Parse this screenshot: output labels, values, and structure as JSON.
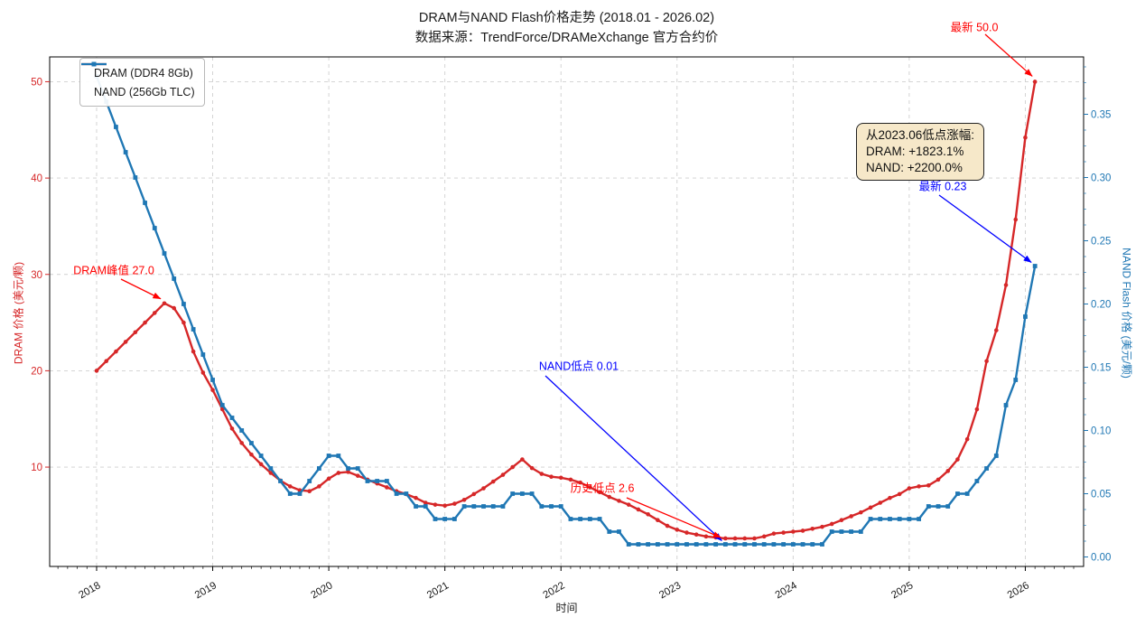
{
  "title": "DRAM与NAND Flash价格走势 (2018.01 - 2026.02)",
  "subtitle": "数据来源：TrendForce/DRAMeXchange 官方合约价",
  "chart_data": {
    "type": "line",
    "x_start": "2018.01",
    "x_end": "2026.02",
    "frequency": "monthly",
    "xlabel": "时间",
    "x_tick_labels": [
      "2018",
      "2019",
      "2020",
      "2021",
      "2022",
      "2023",
      "2024",
      "2025",
      "2026"
    ],
    "grid": "dashed",
    "legend_position": "upper-left",
    "left_axis": {
      "label": "DRAM 价格 (美元/颗)",
      "color": "#d62728",
      "ticks": [
        10,
        20,
        30,
        40,
        50
      ],
      "range": [
        -0.3,
        52.6
      ]
    },
    "right_axis": {
      "label": "NAND Flash 价格 (美元/颗)",
      "color": "#1f77b4",
      "ticks": [
        0.0,
        0.05,
        0.1,
        0.15,
        0.2,
        0.25,
        0.3,
        0.35
      ],
      "range": [
        -0.008,
        0.395
      ]
    },
    "series": [
      {
        "name": "DRAM (DDR4 8Gb)",
        "color": "#d62728",
        "axis": "left",
        "marker": "circle",
        "values": [
          20.0,
          21.0,
          22.0,
          23.0,
          24.0,
          25.0,
          26.0,
          27.0,
          26.5,
          25.0,
          22.0,
          19.8,
          18.0,
          16.0,
          14.0,
          12.5,
          11.3,
          10.3,
          9.4,
          8.6,
          8.0,
          7.6,
          7.5,
          8.0,
          8.8,
          9.4,
          9.5,
          9.1,
          8.7,
          8.3,
          7.9,
          7.5,
          7.2,
          6.8,
          6.3,
          6.1,
          6.0,
          6.2,
          6.6,
          7.2,
          7.8,
          8.5,
          9.2,
          10.0,
          10.8,
          9.9,
          9.3,
          9.0,
          8.9,
          8.7,
          8.4,
          7.9,
          7.4,
          6.9,
          6.5,
          6.1,
          5.6,
          5.1,
          4.5,
          3.9,
          3.5,
          3.2,
          3.0,
          2.8,
          2.7,
          2.6,
          2.6,
          2.6,
          2.6,
          2.8,
          3.1,
          3.2,
          3.3,
          3.4,
          3.6,
          3.8,
          4.1,
          4.5,
          4.9,
          5.3,
          5.8,
          6.3,
          6.8,
          7.2,
          7.8,
          8.0,
          8.1,
          8.7,
          9.6,
          10.8,
          12.9,
          16.0,
          21.0,
          24.2,
          28.9,
          35.7,
          44.2,
          50.0
        ]
      },
      {
        "name": "NAND (256Gb TLC)",
        "color": "#1f77b4",
        "axis": "right",
        "marker": "square",
        "values": [
          0.38,
          0.36,
          0.34,
          0.32,
          0.3,
          0.28,
          0.26,
          0.24,
          0.22,
          0.2,
          0.18,
          0.16,
          0.14,
          0.12,
          0.11,
          0.1,
          0.09,
          0.08,
          0.07,
          0.06,
          0.05,
          0.05,
          0.06,
          0.07,
          0.08,
          0.08,
          0.07,
          0.07,
          0.06,
          0.06,
          0.06,
          0.05,
          0.05,
          0.04,
          0.04,
          0.03,
          0.03,
          0.03,
          0.04,
          0.04,
          0.04,
          0.04,
          0.04,
          0.05,
          0.05,
          0.05,
          0.04,
          0.04,
          0.04,
          0.03,
          0.03,
          0.03,
          0.03,
          0.02,
          0.02,
          0.01,
          0.01,
          0.01,
          0.01,
          0.01,
          0.01,
          0.01,
          0.01,
          0.01,
          0.01,
          0.01,
          0.01,
          0.01,
          0.01,
          0.01,
          0.01,
          0.01,
          0.01,
          0.01,
          0.01,
          0.01,
          0.02,
          0.02,
          0.02,
          0.02,
          0.03,
          0.03,
          0.03,
          0.03,
          0.03,
          0.03,
          0.04,
          0.04,
          0.04,
          0.05,
          0.05,
          0.06,
          0.07,
          0.08,
          0.12,
          0.14,
          0.19,
          0.23
        ]
      }
    ],
    "annotations": [
      {
        "id": "latest-dram",
        "text": "最新 50.0",
        "color": "#ff0000",
        "axis": "left",
        "month_index": 97,
        "value": 50.0
      },
      {
        "id": "dram-peak",
        "text": "DRAM峰值 27.0",
        "color": "#ff0000",
        "axis": "left",
        "month_index": 7,
        "value": 27.0
      },
      {
        "id": "nand-low",
        "text": "NAND低点 0.01",
        "color": "#0000ff",
        "axis": "right",
        "month_index": 65,
        "value": 0.01
      },
      {
        "id": "dram-low",
        "text": "历史低点 2.6",
        "color": "#ff0000",
        "axis": "left",
        "month_index": 65,
        "value": 2.6
      },
      {
        "id": "latest-nand",
        "text": "最新 0.23",
        "color": "#0000ff",
        "axis": "right",
        "month_index": 97,
        "value": 0.23
      }
    ],
    "annotation_box": {
      "lines": [
        "从2023.06低点涨幅:",
        "DRAM: +1823.1%",
        "NAND: +2200.0%"
      ]
    }
  }
}
